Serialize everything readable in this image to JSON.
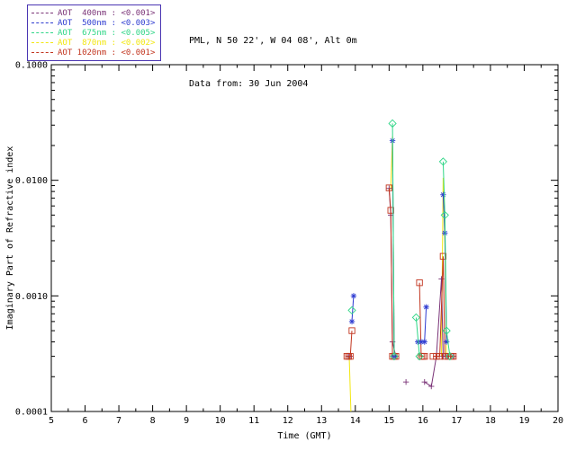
{
  "header": {
    "line1": "PML, N 50 22', W 04 08', Alt 0m",
    "line2": "Data from: 30 Jun 2004"
  },
  "chart_data": {
    "type": "line",
    "title": "",
    "xlabel": "Time (GMT)",
    "ylabel": "Imaginary Part of Refractive index",
    "xlim": [
      5,
      20
    ],
    "ylim": [
      0.0001,
      0.1
    ],
    "yscale": "log",
    "xticks": [
      5,
      6,
      7,
      8,
      9,
      10,
      11,
      12,
      13,
      14,
      15,
      16,
      17,
      18,
      19,
      20
    ],
    "ytick_labels": [
      "0.0001",
      "0.0010",
      "0.0100",
      "0.1000"
    ],
    "grid": false,
    "legend_position": "top-left",
    "axis_color": "#000000",
    "background": "#ffffff",
    "series": [
      {
        "name": "870nm",
        "legend_label": "AOT  870nm : <0.002>",
        "mean": "<0.002>",
        "color": "#f2e711",
        "marker": "none",
        "segments": [
          [
            [
              13.78,
              0.0003
            ],
            [
              13.82,
              0.0003
            ],
            [
              13.87,
              0.0001
            ]
          ],
          [
            [
              15.0,
              0.0082
            ],
            [
              15.05,
              0.0085
            ],
            [
              15.1,
              0.024
            ],
            [
              15.15,
              0.0003
            ],
            [
              15.2,
              0.0003
            ]
          ],
          [
            [
              16.55,
              0.0003
            ],
            [
              16.6,
              0.0105
            ],
            [
              16.65,
              0.0028
            ],
            [
              16.7,
              0.0003
            ]
          ]
        ]
      },
      {
        "name": "400nm",
        "legend_label": "AOT  400nm : <0.001>",
        "mean": "<0.001>",
        "color": "#7a3377",
        "marker": "plus",
        "segments": [
          [
            [
              13.8,
              0.0003
            ],
            [
              13.85,
              0.0003
            ]
          ],
          [
            [
              15.0,
              0.0085
            ],
            [
              15.05,
              0.005
            ],
            [
              15.1,
              0.0004
            ],
            [
              15.2,
              0.0003
            ]
          ],
          [
            [
              15.5,
              0.00018
            ]
          ],
          [
            [
              16.05,
              0.00018
            ],
            [
              16.25,
              0.000165
            ],
            [
              16.4,
              0.0003
            ],
            [
              16.55,
              0.0014
            ],
            [
              16.6,
              0.0003
            ],
            [
              16.7,
              0.0003
            ],
            [
              16.9,
              0.0003
            ]
          ]
        ]
      },
      {
        "name": "1020nm",
        "legend_label": "AOT 1020nm : <0.001>",
        "mean": "<0.001>",
        "color": "#c2351f",
        "marker": "square",
        "segments": [
          [
            [
              13.75,
              0.0003
            ],
            [
              13.8,
              0.0003
            ],
            [
              13.85,
              0.0003
            ],
            [
              13.9,
              0.0005
            ]
          ],
          [
            [
              15.0,
              0.0086
            ],
            [
              15.05,
              0.0055
            ],
            [
              15.1,
              0.0003
            ],
            [
              15.15,
              0.0003
            ],
            [
              15.2,
              0.0003
            ]
          ],
          [
            [
              15.9,
              0.0013
            ],
            [
              15.95,
              0.0003
            ],
            [
              16.0,
              0.0003
            ],
            [
              16.05,
              0.0003
            ]
          ],
          [
            [
              16.3,
              0.0003
            ],
            [
              16.4,
              0.0003
            ],
            [
              16.5,
              0.0003
            ],
            [
              16.6,
              0.0022
            ],
            [
              16.65,
              0.0003
            ],
            [
              16.75,
              0.0003
            ],
            [
              16.85,
              0.0003
            ],
            [
              16.9,
              0.0003
            ]
          ]
        ]
      },
      {
        "name": "500nm",
        "legend_label": "AOT  500nm : <0.003>",
        "mean": "<0.003>",
        "color": "#2e3bd1",
        "marker": "asterisk",
        "segments": [
          [
            [
              13.9,
              0.0006
            ],
            [
              13.95,
              0.001
            ]
          ],
          [
            [
              15.1,
              0.022
            ],
            [
              15.15,
              0.0003
            ]
          ],
          [
            [
              15.85,
              0.0004
            ],
            [
              15.95,
              0.0004
            ],
            [
              16.05,
              0.0004
            ],
            [
              16.1,
              0.0008
            ]
          ],
          [
            [
              16.6,
              0.0075
            ],
            [
              16.65,
              0.0035
            ],
            [
              16.7,
              0.0004
            ]
          ]
        ]
      },
      {
        "name": "675nm",
        "legend_label": "AOT  675nm : <0.005>",
        "mean": "<0.005>",
        "color": "#2fd687",
        "marker": "diamond",
        "segments": [
          [
            [
              13.9,
              0.00075
            ]
          ],
          [
            [
              15.1,
              0.031
            ],
            [
              15.15,
              0.0003
            ]
          ],
          [
            [
              15.8,
              0.00065
            ],
            [
              15.9,
              0.0003
            ]
          ],
          [
            [
              16.6,
              0.0145
            ],
            [
              16.65,
              0.005
            ],
            [
              16.7,
              0.0005
            ],
            [
              16.8,
              0.0003
            ]
          ]
        ]
      }
    ]
  }
}
